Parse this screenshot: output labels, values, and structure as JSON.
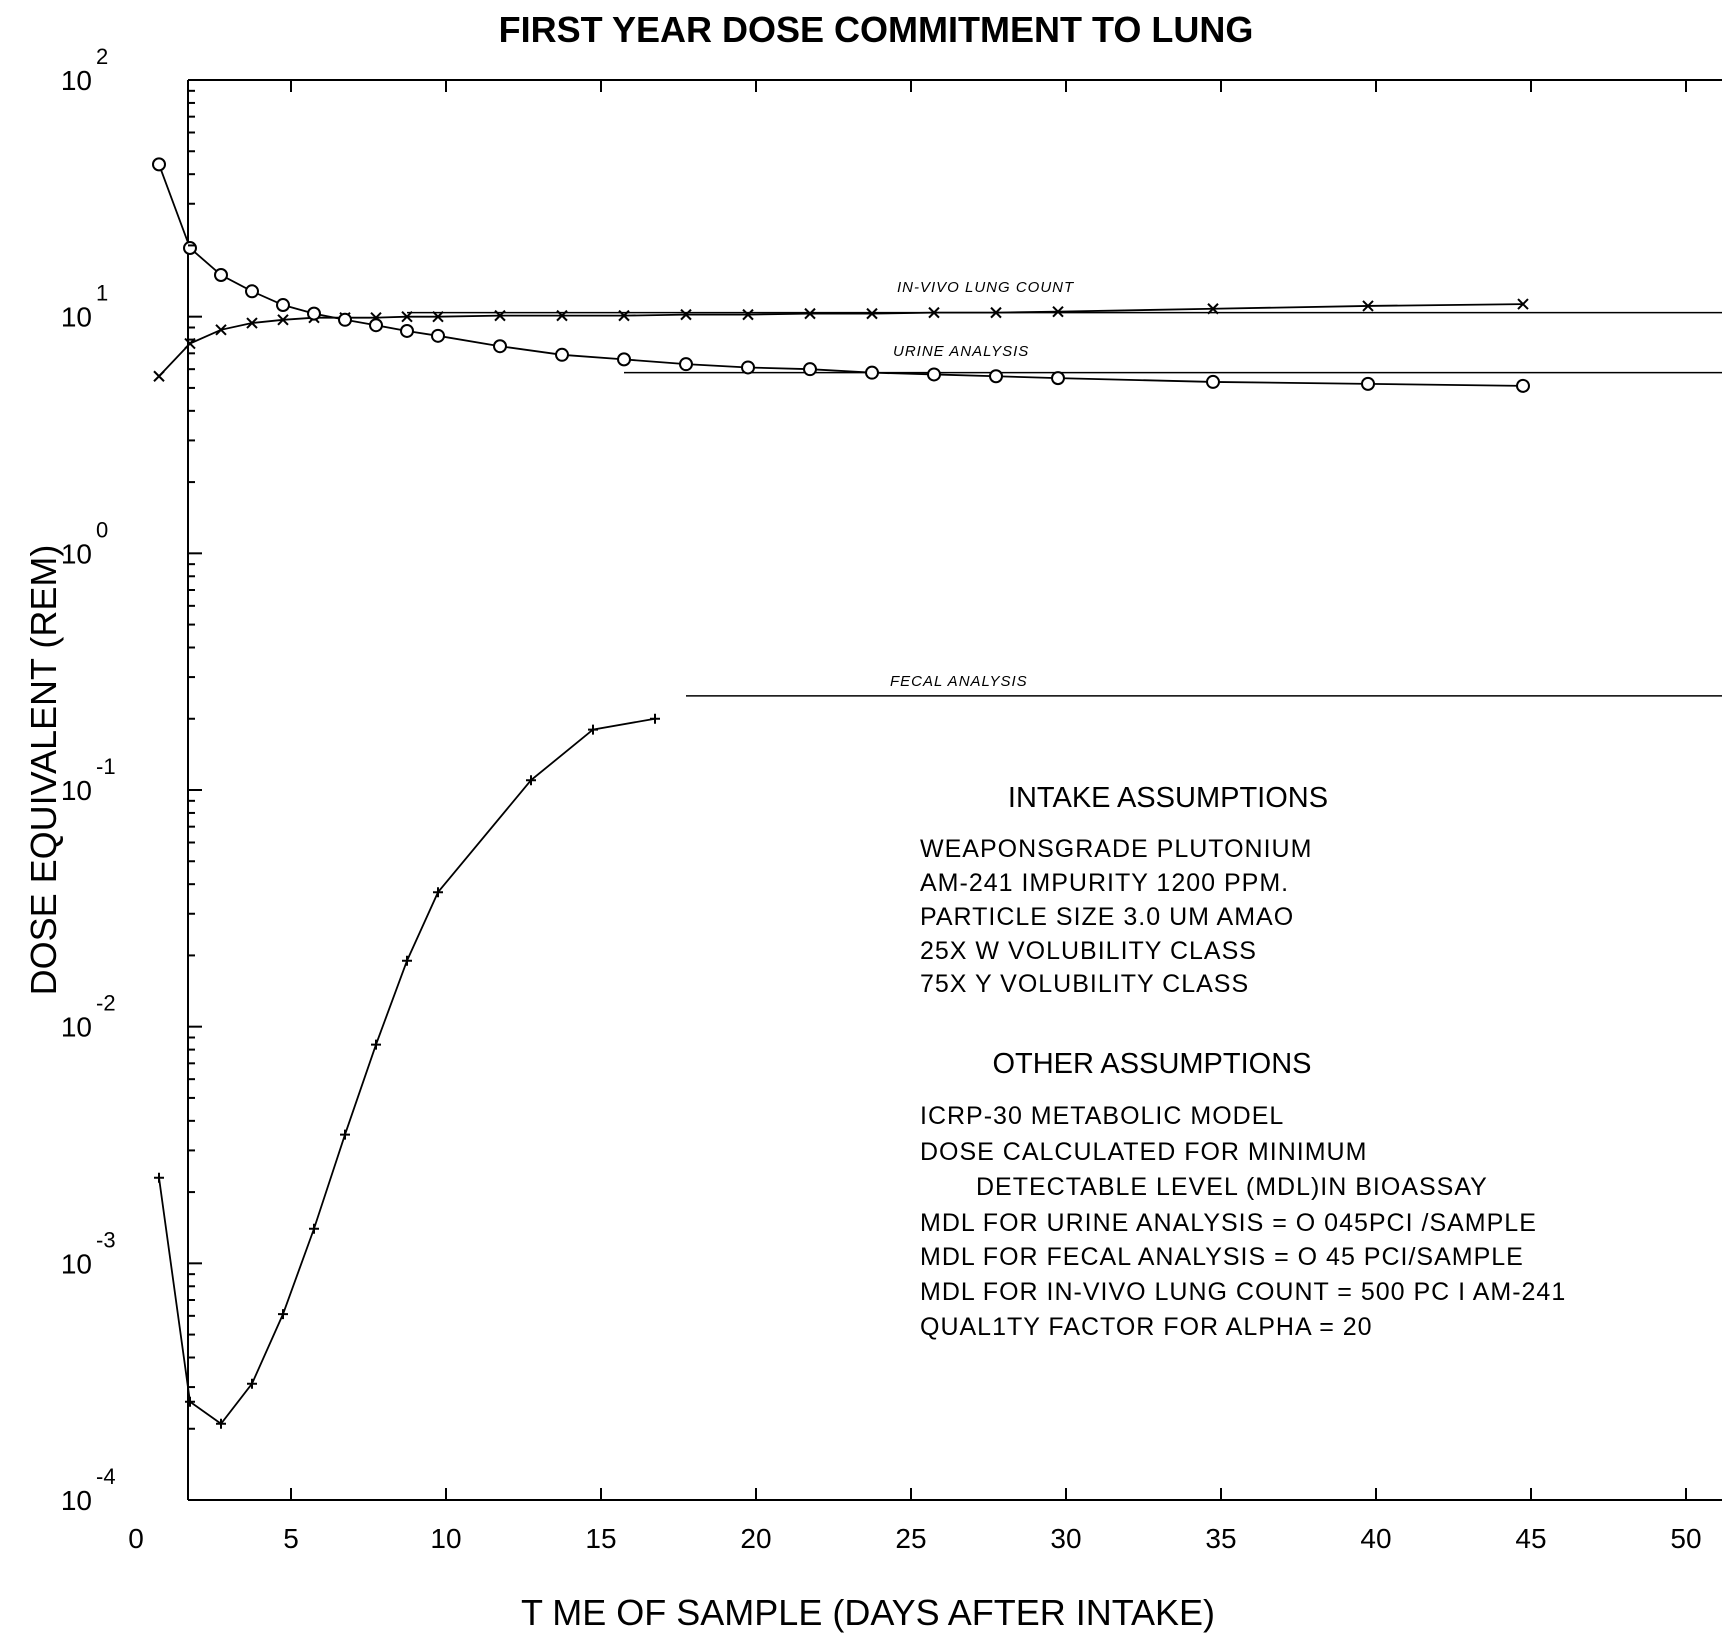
{
  "chart_data": {
    "type": "line",
    "title": "FIRST YEAR DOSE COMMITMENT TO LUNG",
    "xlabel": "T ME OF SAMPLE (DAYS AFTER INTAKE)",
    "ylabel": "DOSE EQUIVALENT (REM)",
    "xlim": [
      0,
      51
    ],
    "ylim": [
      0.0001,
      100
    ],
    "yscale": "log",
    "x_ticks": [
      {
        "value": 0,
        "label": "0"
      },
      {
        "value": 5,
        "label": "5"
      },
      {
        "value": 10,
        "label": "10"
      },
      {
        "value": 15,
        "label": "15"
      },
      {
        "value": 20,
        "label": "20"
      },
      {
        "value": 25,
        "label": "25"
      },
      {
        "value": 30,
        "label": "30"
      },
      {
        "value": 35,
        "label": "35"
      },
      {
        "value": 40,
        "label": "40"
      },
      {
        "value": 45,
        "label": "45"
      },
      {
        "value": 50,
        "label": "50"
      }
    ],
    "y_ticks": [
      {
        "value": 100,
        "base": "10",
        "exp": "2"
      },
      {
        "value": 10,
        "base": "10",
        "exp": "1"
      },
      {
        "value": 1,
        "base": "10",
        "exp": "0"
      },
      {
        "value": 0.1,
        "base": "10",
        "exp": "-1"
      },
      {
        "value": 0.01,
        "base": "10",
        "exp": "-2"
      },
      {
        "value": 0.001,
        "base": "10",
        "exp": "-3"
      },
      {
        "value": 0.0001,
        "base": "10",
        "exp": "-4"
      }
    ],
    "series": [
      {
        "name": "IN-VIVO LUNG COUNT",
        "marker": "x",
        "x": [
          1,
          2,
          3,
          4,
          5,
          6,
          7,
          8,
          9,
          10,
          12,
          14,
          16,
          18,
          20,
          22,
          24,
          26,
          28,
          30,
          35,
          40,
          45
        ],
        "y": [
          5.6,
          7.7,
          8.8,
          9.4,
          9.7,
          9.9,
          9.9,
          9.9,
          10.0,
          10.0,
          10.1,
          10.1,
          10.1,
          10.2,
          10.2,
          10.3,
          10.3,
          10.4,
          10.4,
          10.5,
          10.8,
          11.1,
          11.3
        ],
        "mdl_line": 10.4
      },
      {
        "name": "URINE ANALYSIS",
        "marker": "o",
        "x": [
          1,
          2,
          3,
          4,
          5,
          6,
          7,
          8,
          9,
          10,
          12,
          14,
          16,
          18,
          20,
          22,
          24,
          26,
          28,
          30,
          35,
          40,
          45
        ],
        "y": [
          44,
          19.5,
          15,
          12.8,
          11.2,
          10.3,
          9.7,
          9.2,
          8.7,
          8.3,
          7.5,
          6.9,
          6.6,
          6.3,
          6.1,
          6.0,
          5.8,
          5.7,
          5.6,
          5.5,
          5.3,
          5.2,
          5.1
        ],
        "mdl_line": 5.8
      },
      {
        "name": "FECAL ANALYSIS",
        "marker": "+",
        "x": [
          1,
          2,
          3,
          4,
          5,
          6,
          7,
          8,
          9,
          10,
          13,
          15,
          17
        ],
        "y": [
          0.0023,
          0.00026,
          0.00021,
          0.00031,
          0.00061,
          0.0014,
          0.0035,
          0.0084,
          0.019,
          0.037,
          0.11,
          0.18,
          0.2
        ],
        "mdl_line": 0.25
      }
    ],
    "grid": false
  },
  "notes": {
    "intake_heading": "INTAKE ASSUMPTIONS",
    "intake_lines": [
      "WEAPONSGRADE PLUTONIUM",
      "AM-241 IMPURITY 1200 PPM.",
      "PARTICLE SIZE 3.0 UM AMAO",
      "25X W VOLUBILITY CLASS",
      "75X Y VOLUBILITY CLASS"
    ],
    "other_heading": "OTHER ASSUMPTIONS",
    "other_lines": [
      "ICRP-30 METABOLIC MODEL",
      "DOSE CALCULATED FOR MINIMUM",
      "DETECTABLE LEVEL (MDL)IN BIOASSAY",
      "MDL FOR URINE ANALYSIS = O 045PCI /SAMPLE",
      "MDL FOR FECAL ANALYSIS = O 45 PCI/SAMPLE",
      "MDL FOR IN-VIVO LUNG COUNT = 500 PC I AM-241",
      "QUAL1TY FACTOR FOR ALPHA = 20"
    ]
  }
}
